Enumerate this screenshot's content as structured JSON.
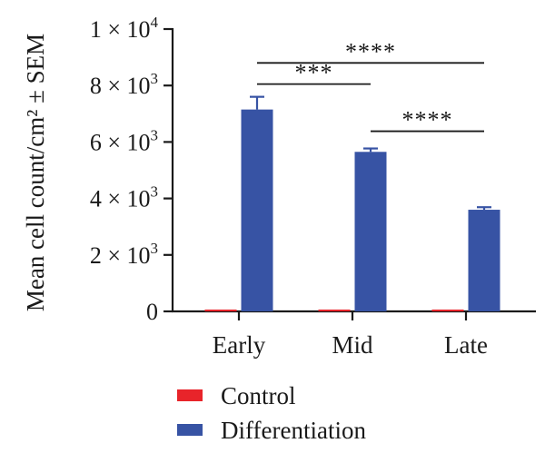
{
  "chart_data": {
    "type": "bar",
    "title": "",
    "ylabel": "Mean cell count/cm² ± SEM",
    "xlabel": "",
    "categories": [
      "Early",
      "Mid",
      "Late"
    ],
    "ylim": [
      0,
      10000
    ],
    "yticks": [
      {
        "value": 0,
        "mantissa": "0",
        "exp": ""
      },
      {
        "value": 2000,
        "mantissa": "2 × 10",
        "exp": "3"
      },
      {
        "value": 4000,
        "mantissa": "4 × 10",
        "exp": "3"
      },
      {
        "value": 6000,
        "mantissa": "6 × 10",
        "exp": "3"
      },
      {
        "value": 8000,
        "mantissa": "8 × 10",
        "exp": "3"
      },
      {
        "value": 10000,
        "mantissa": "1 × 10",
        "exp": "4"
      }
    ],
    "series": [
      {
        "name": "Control",
        "color": "#e8242a",
        "values": [
          40,
          50,
          30
        ],
        "errors": [
          10,
          10,
          10
        ]
      },
      {
        "name": "Differentiation",
        "color": "#3753a4",
        "values": [
          7150,
          5650,
          3600
        ],
        "errors": [
          450,
          120,
          90
        ]
      }
    ],
    "significance": [
      {
        "from": "Early",
        "to": "Late",
        "label": "****",
        "y": 8800
      },
      {
        "from": "Early",
        "to": "Mid",
        "label": "***",
        "y": 8050
      },
      {
        "from": "Mid",
        "to": "Late",
        "label": "****",
        "y": 6380
      }
    ],
    "legend_position": "bottom-left",
    "grid": false
  }
}
